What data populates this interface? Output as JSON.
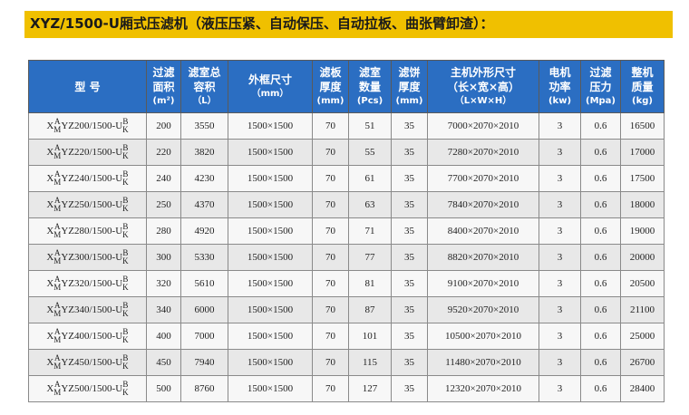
{
  "title": "XYZ/1500-U厢式压滤机（液压压紧、自动保压、自动拉板、曲张臂卸渣）：",
  "colors": {
    "title_bar": "#f0c000",
    "header_bg": "#2b6ec2",
    "header_text": "#ffffff"
  },
  "header": {
    "model": "型 号",
    "filter_area": [
      "过滤",
      "面积",
      "(m²)"
    ],
    "chamber_volume": [
      "滤室总",
      "容积",
      "（L）"
    ],
    "frame_size": [
      "外框尺寸",
      "（mm）"
    ],
    "plate_thickness": [
      "滤板",
      "厚度",
      "(mm)"
    ],
    "chamber_count": [
      "滤室",
      "数量",
      "(Pcs)"
    ],
    "cake_thickness": [
      "滤饼",
      "厚度",
      "(mm)"
    ],
    "dimensions": [
      "主机外形尺寸",
      "（长×宽×高）",
      "（L×W×H）"
    ],
    "motor_power": [
      "电机",
      "功率",
      "(kw)"
    ],
    "filter_pressure": [
      "过滤",
      "压力",
      "(Mpa)"
    ],
    "weight": [
      "整机",
      "质量",
      "(kg)"
    ]
  },
  "rows": [
    {
      "model": {
        "pre": "X",
        "sup1": "A",
        "sub1": "M",
        "mid": "YZ200/1500-U",
        "sup2": "B",
        "sub2": "K"
      },
      "area": "200",
      "volume": "3550",
      "frame": "1500×1500",
      "plate": "70",
      "chambers": "51",
      "cake": "35",
      "dims": "7000×2070×2010",
      "power": "3",
      "pressure": "0.6",
      "weight": "16500"
    },
    {
      "model": {
        "pre": "X",
        "sup1": "A",
        "sub1": "M",
        "mid": "YZ220/1500-U",
        "sup2": "B",
        "sub2": "K"
      },
      "area": "220",
      "volume": "3820",
      "frame": "1500×1500",
      "plate": "70",
      "chambers": "55",
      "cake": "35",
      "dims": "7280×2070×2010",
      "power": "3",
      "pressure": "0.6",
      "weight": "17000"
    },
    {
      "model": {
        "pre": "X",
        "sup1": "A",
        "sub1": "M",
        "mid": "YZ240/1500-U",
        "sup2": "B",
        "sub2": "K"
      },
      "area": "240",
      "volume": "4230",
      "frame": "1500×1500",
      "plate": "70",
      "chambers": "61",
      "cake": "35",
      "dims": "7700×2070×2010",
      "power": "3",
      "pressure": "0.6",
      "weight": "17500"
    },
    {
      "model": {
        "pre": "X",
        "sup1": "A",
        "sub1": "M",
        "mid": "YZ250/1500-U",
        "sup2": "B",
        "sub2": "K"
      },
      "area": "250",
      "volume": "4370",
      "frame": "1500×1500",
      "plate": "70",
      "chambers": "63",
      "cake": "35",
      "dims": "7840×2070×2010",
      "power": "3",
      "pressure": "0.6",
      "weight": "18000"
    },
    {
      "model": {
        "pre": "X",
        "sup1": "A",
        "sub1": "M",
        "mid": "YZ280/1500-U",
        "sup2": "B",
        "sub2": "K"
      },
      "area": "280",
      "volume": "4920",
      "frame": "1500×1500",
      "plate": "70",
      "chambers": "71",
      "cake": "35",
      "dims": "8400×2070×2010",
      "power": "3",
      "pressure": "0.6",
      "weight": "19000"
    },
    {
      "model": {
        "pre": "X",
        "sup1": "A",
        "sub1": "M",
        "mid": "YZ300/1500-U",
        "sup2": "B",
        "sub2": "K"
      },
      "area": "300",
      "volume": "5330",
      "frame": "1500×1500",
      "plate": "70",
      "chambers": "77",
      "cake": "35",
      "dims": "8820×2070×2010",
      "power": "3",
      "pressure": "0.6",
      "weight": "20000"
    },
    {
      "model": {
        "pre": "X",
        "sup1": "A",
        "sub1": "M",
        "mid": "YZ320/1500-U",
        "sup2": "B",
        "sub2": "K"
      },
      "area": "320",
      "volume": "5610",
      "frame": "1500×1500",
      "plate": "70",
      "chambers": "81",
      "cake": "35",
      "dims": "9100×2070×2010",
      "power": "3",
      "pressure": "0.6",
      "weight": "20500"
    },
    {
      "model": {
        "pre": "X",
        "sup1": "A",
        "sub1": "M",
        "mid": "YZ340/1500-U",
        "sup2": "B",
        "sub2": "K"
      },
      "area": "340",
      "volume": "6000",
      "frame": "1500×1500",
      "plate": "70",
      "chambers": "87",
      "cake": "35",
      "dims": "9520×2070×2010",
      "power": "3",
      "pressure": "0.6",
      "weight": "21100"
    },
    {
      "model": {
        "pre": "X",
        "sup1": "A",
        "sub1": "M",
        "mid": "YZ400/1500-U",
        "sup2": "B",
        "sub2": "K"
      },
      "area": "400",
      "volume": "7000",
      "frame": "1500×1500",
      "plate": "70",
      "chambers": "101",
      "cake": "35",
      "dims": "10500×2070×2010",
      "power": "3",
      "pressure": "0.6",
      "weight": "25000"
    },
    {
      "model": {
        "pre": "X",
        "sup1": "A",
        "sub1": "M",
        "mid": "YZ450/1500-U",
        "sup2": "B",
        "sub2": "K"
      },
      "area": "450",
      "volume": "7940",
      "frame": "1500×1500",
      "plate": "70",
      "chambers": "115",
      "cake": "35",
      "dims": "11480×2070×2010",
      "power": "3",
      "pressure": "0.6",
      "weight": "26700"
    },
    {
      "model": {
        "pre": "X",
        "sup1": "A",
        "sub1": "M",
        "mid": "YZ500/1500-U",
        "sup2": "B",
        "sub2": "K"
      },
      "area": "500",
      "volume": "8760",
      "frame": "1500×1500",
      "plate": "70",
      "chambers": "127",
      "cake": "35",
      "dims": "12320×2070×2010",
      "power": "3",
      "pressure": "0.6",
      "weight": "28400"
    }
  ]
}
